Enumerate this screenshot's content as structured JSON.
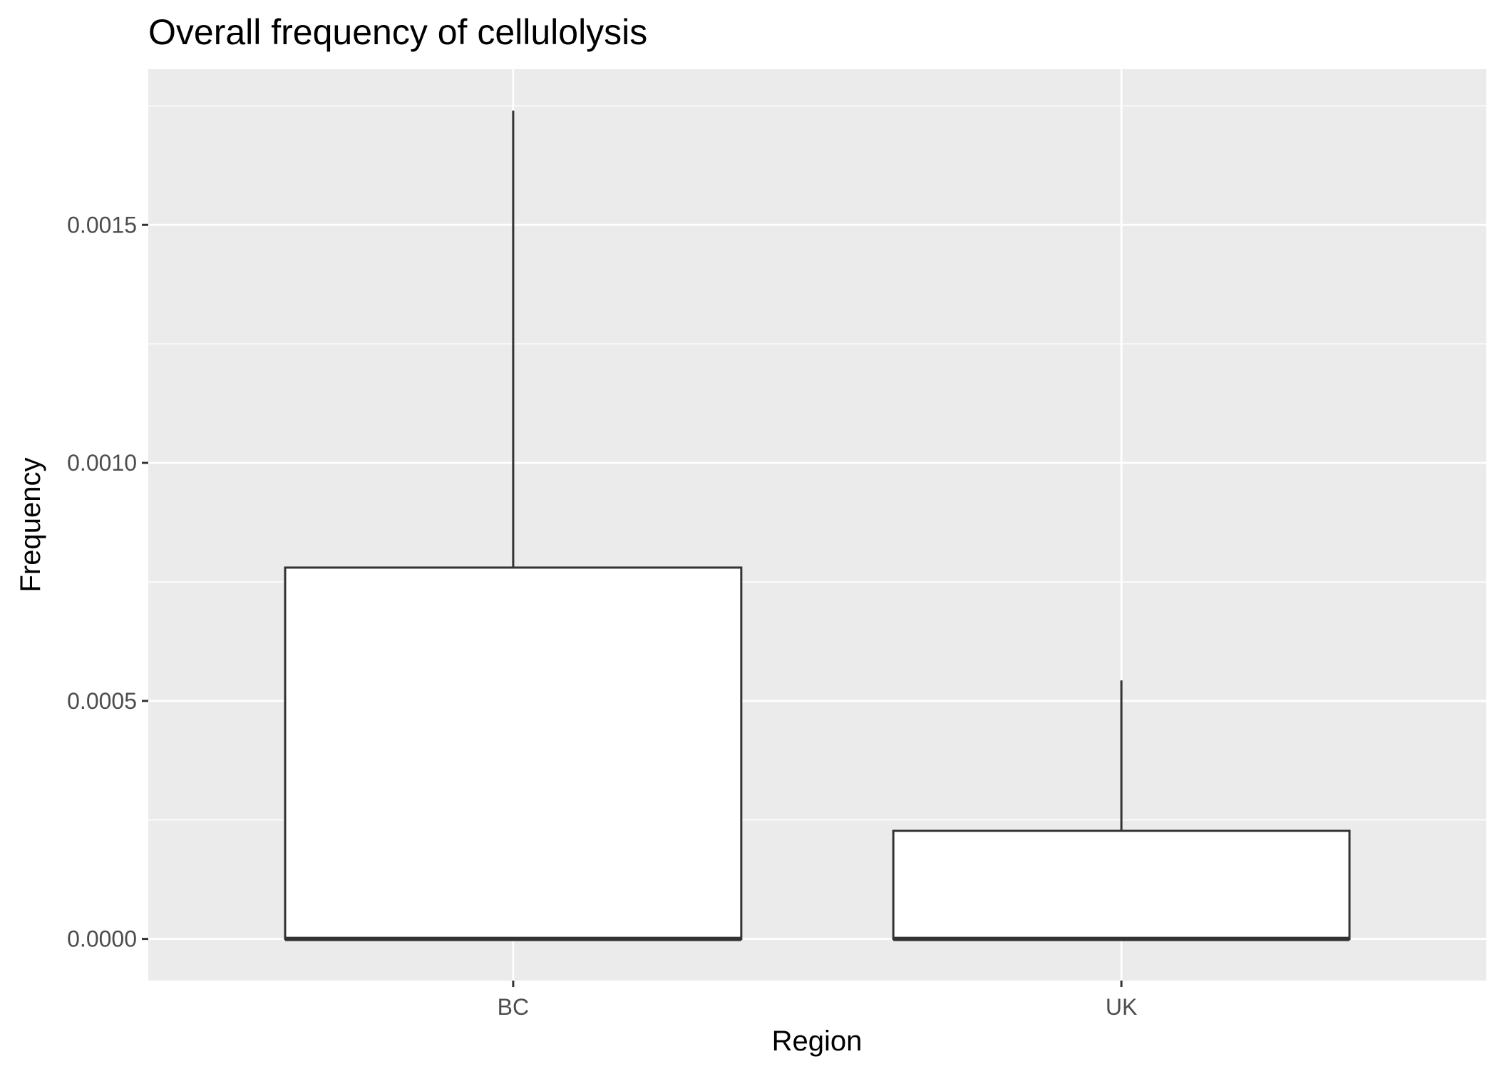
{
  "chart_data": {
    "type": "boxplot",
    "title": "Overall frequency of cellulolysis",
    "xlabel": "Region",
    "ylabel": "Frequency",
    "categories": [
      "BC",
      "UK"
    ],
    "boxes": [
      {
        "name": "BC",
        "min": 0.0,
        "q1": 0.0,
        "median": 0.0,
        "q3": 0.00078,
        "max": 0.00174
      },
      {
        "name": "UK",
        "min": 0.0,
        "q1": 0.0,
        "median": 0.0,
        "q3": 0.000227,
        "max": 0.000543
      }
    ],
    "y_ticks": [
      0.0,
      0.0005,
      0.001,
      0.0015
    ],
    "y_tick_labels": [
      "0.0000",
      "0.0005",
      "0.0010",
      "0.0015"
    ],
    "ylim": [
      -8.75e-05,
      0.001827
    ],
    "grid": true,
    "colors": {
      "panel_background": "#ebebeb",
      "gridline": "#ffffff",
      "box_fill": "#ffffff",
      "box_stroke": "#333333",
      "tick_text": "#4d4d4d",
      "title_text": "#000000"
    }
  }
}
